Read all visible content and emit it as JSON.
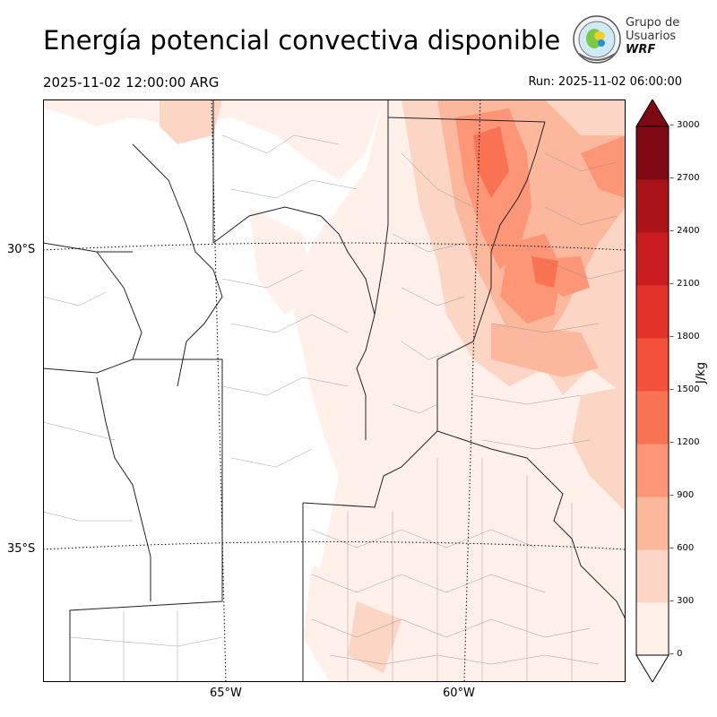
{
  "header": {
    "title": "Energía potencial convectiva disponible",
    "valid_time": "2025-11-02 12:00:00 ARG",
    "run_time": "Run: 2025-11-02 06:00:00"
  },
  "logo": {
    "line1": "Grupo de",
    "line2": "Usuarios",
    "line3": "WRF"
  },
  "map": {
    "lat_labels": [
      "30°S",
      "35°S"
    ],
    "lon_labels": [
      "65°W",
      "60°W"
    ],
    "field": "CAPE",
    "colors": {
      "c0": "#fff0ea",
      "c1": "#fcd5c4",
      "c2": "#fcb89d",
      "c3": "#fc9677",
      "c4": "#f97353"
    }
  },
  "colorbar": {
    "label": "J/kg",
    "ticks": [
      "0",
      "300",
      "600",
      "900",
      "1200",
      "1500",
      "1800",
      "2100",
      "2400",
      "2700",
      "3000"
    ],
    "colors": [
      "#fff0ea",
      "#fcd5c4",
      "#fcb89d",
      "#fc9677",
      "#f97353",
      "#f4513a",
      "#e33229",
      "#c91d21",
      "#aa1318",
      "#7f0912"
    ]
  }
}
